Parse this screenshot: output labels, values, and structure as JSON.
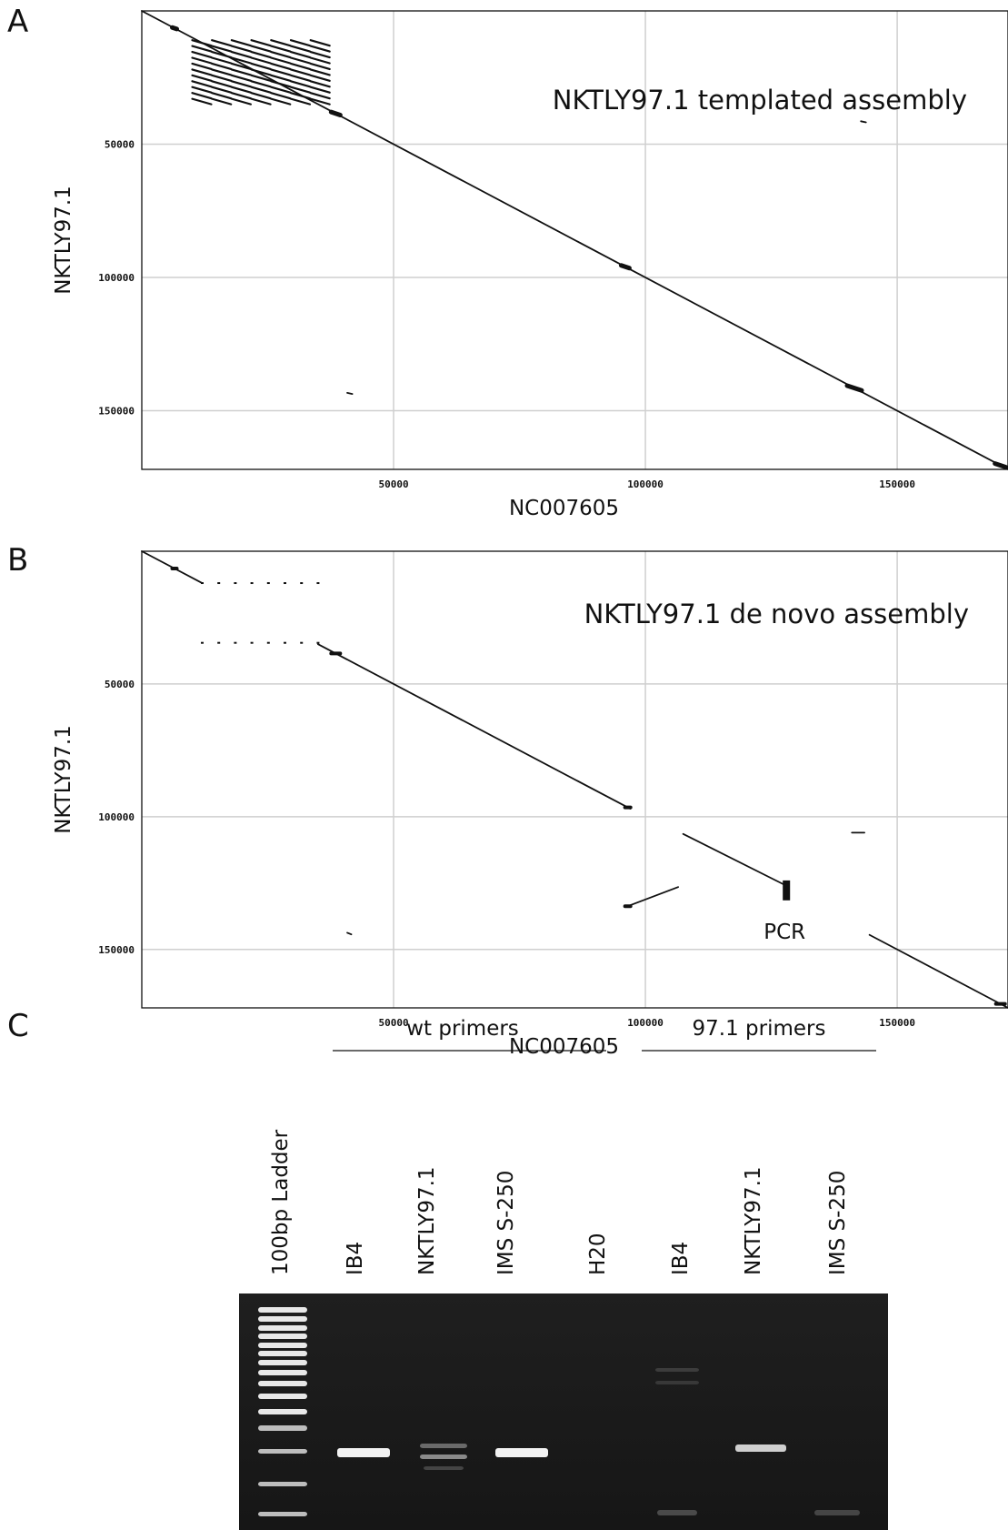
{
  "panels": {
    "a": "A",
    "b": "B",
    "c": "C"
  },
  "chart_data": [
    {
      "type": "scatter",
      "subtype": "dot-plot",
      "panel": "A",
      "title": "",
      "annotation": "NKTLY97.1 templated assembly",
      "xlabel": "NC007605",
      "ylabel": "NKTLY97.1",
      "xlim": [
        0,
        172000
      ],
      "ylim": [
        0,
        172000
      ],
      "y_inverted": true,
      "xticks": [
        "50000",
        "100000",
        "150000"
      ],
      "yticks": [
        "50000",
        "100000",
        "150000"
      ],
      "grid": true,
      "segments": [
        {
          "x": [
            0,
            172000
          ],
          "y": [
            0,
            172000
          ]
        },
        {
          "x": [
            40800,
            41800
          ],
          "y": [
            143300,
            143700
          ]
        },
        {
          "x": [
            142800,
            143800
          ],
          "y": [
            41400,
            41800
          ]
        }
      ],
      "repeat_block": {
        "x": [
          12000,
          35500
        ],
        "y": [
          12000,
          34000
        ]
      }
    },
    {
      "type": "scatter",
      "subtype": "dot-plot",
      "panel": "B",
      "title": "",
      "annotation": "NKTLY97.1 de novo assembly",
      "marker_label": "PCR",
      "xlabel": "NC007605",
      "ylabel": "NKTLY97.1",
      "xlim": [
        0,
        172000
      ],
      "ylim": [
        0,
        172000
      ],
      "y_inverted": true,
      "xticks": [
        "50000",
        "100000",
        "150000"
      ],
      "yticks": [
        "50000",
        "100000",
        "150000"
      ],
      "grid": true,
      "segments": [
        {
          "x": [
            0,
            12000
          ],
          "y": [
            0,
            12000
          ]
        },
        {
          "x": [
            35000,
            97000
          ],
          "y": [
            35000,
            97000
          ]
        },
        {
          "x": [
            96500,
            106500
          ],
          "y": [
            133700,
            126500
          ]
        },
        {
          "x": [
            107500,
            128000
          ],
          "y": [
            106500,
            126000
          ]
        },
        {
          "x": [
            141000,
            143500
          ],
          "y": [
            106000,
            106000
          ]
        },
        {
          "x": [
            144500,
            172000
          ],
          "y": [
            144500,
            172000
          ]
        },
        {
          "x": [
            40800,
            41600
          ],
          "y": [
            143700,
            144300
          ]
        }
      ],
      "pcr_marker": {
        "x": 128000,
        "y": [
          124000,
          131500
        ]
      }
    },
    {
      "type": "gel",
      "panel": "C",
      "group_labels": [
        "wt primers",
        "97.1 primers"
      ],
      "lanes": [
        "100bp Ladder",
        "IB4",
        "NKTLY97.1",
        "IMS S-250",
        "H20",
        "IB4",
        "NKTLY97.1",
        "IMS S-250"
      ]
    }
  ]
}
